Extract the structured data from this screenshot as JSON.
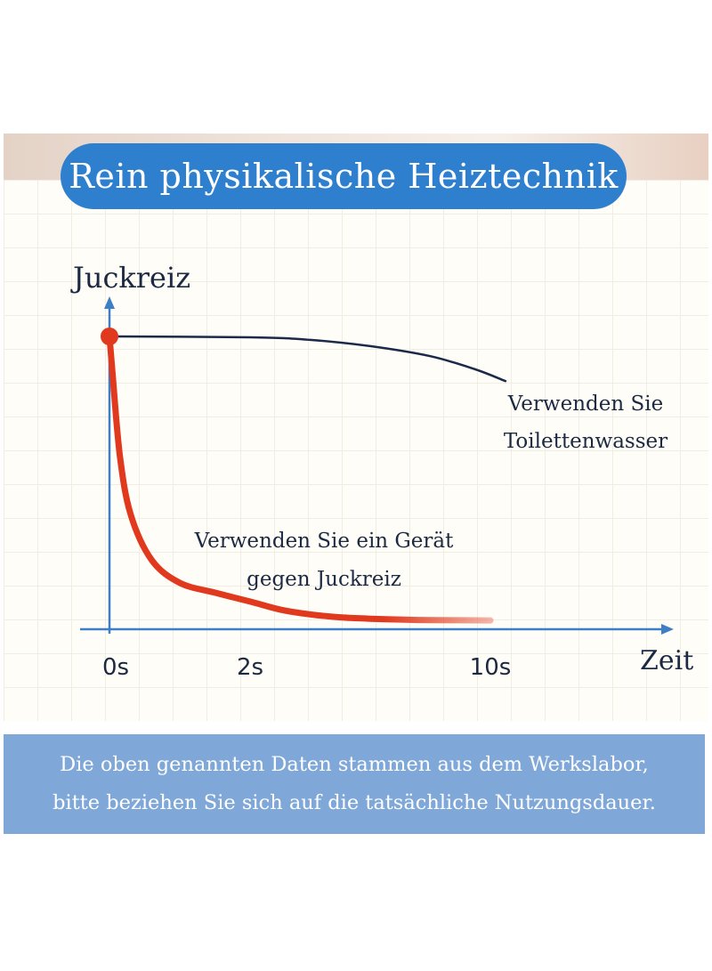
{
  "title": "Rein physikalische Heiztechnik",
  "footer": {
    "line1": "Die oben genannten Daten stammen aus dem Werkslabor,",
    "line2": "bitte beziehen Sie sich auf die tatsächliche Nutzungsdauer."
  },
  "colors": {
    "title_background": "#2f7fcf",
    "footer_background": "#7fa8d8",
    "axis": "#3d7fc4",
    "device_curve": "#e1391e",
    "toilet_curve": "#1b2a4a",
    "text_dark": "#1c2942"
  },
  "chart_data": {
    "type": "line",
    "ylabel": "Juckreiz",
    "xlabel": "Zeit",
    "x_ticks": [
      {
        "value": 0,
        "label": "0s"
      },
      {
        "value": 2,
        "label": "2s"
      },
      {
        "value": 10,
        "label": "10s"
      }
    ],
    "grid": true,
    "series": [
      {
        "name": "Verwenden Sie Toilettenwasser",
        "label_lines": [
          "Verwenden Sie",
          "Toilettenwasser"
        ],
        "points": [
          [
            0,
            100
          ],
          [
            2,
            99.7
          ],
          [
            4,
            98.8
          ],
          [
            6,
            96.6
          ],
          [
            8,
            93.1
          ],
          [
            9.5,
            88.5
          ],
          [
            10.5,
            84.4
          ]
        ]
      },
      {
        "name": "Verwenden Sie ein Gerät gegen Juckreiz",
        "label_lines": [
          "Verwenden Sie ein Gerät",
          "gegen Juckreiz"
        ],
        "points": [
          [
            0,
            100
          ],
          [
            0.05,
            85
          ],
          [
            0.15,
            58
          ],
          [
            0.3,
            38
          ],
          [
            0.6,
            22
          ],
          [
            1,
            14
          ],
          [
            1.5,
            10.6
          ],
          [
            2,
            7.5
          ],
          [
            3,
            4.7
          ],
          [
            4,
            3
          ],
          [
            5,
            2
          ],
          [
            6,
            1.5
          ],
          [
            7,
            1.2
          ],
          [
            8,
            1.0
          ],
          [
            10,
            0.9
          ]
        ]
      }
    ]
  }
}
